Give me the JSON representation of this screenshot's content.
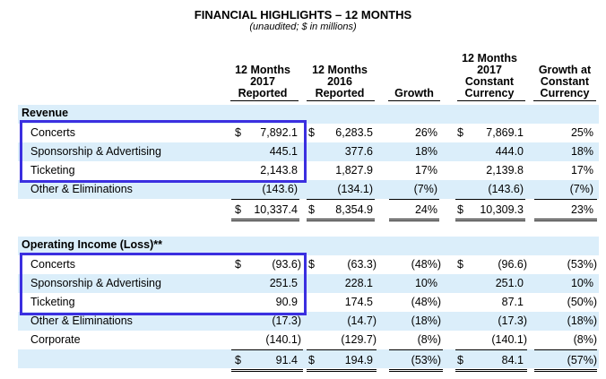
{
  "title": "FINANCIAL HIGHLIGHTS – 12 MONTHS",
  "subtitle": "(unaudited; $ in millions)",
  "headers": {
    "c1": [
      "12 Months",
      "2017",
      "Reported"
    ],
    "c2": [
      "12 Months",
      "2016",
      "Reported"
    ],
    "c3": [
      "Growth"
    ],
    "c4": [
      "12 Months",
      "2017",
      "Constant",
      "Currency"
    ],
    "c5": [
      "Growth at",
      "Constant",
      "Currency"
    ]
  },
  "currency_symbol": "$",
  "revenue": {
    "heading": "Revenue",
    "rows": [
      {
        "label": "Concerts",
        "c1": "7,892.1",
        "c2": "6,283.5",
        "c3": "26%",
        "c4": "7,869.1",
        "c5": "25%"
      },
      {
        "label": "Sponsorship & Advertising",
        "c1": "445.1",
        "c2": "377.6",
        "c3": "18%",
        "c4": "444.0",
        "c5": "18%"
      },
      {
        "label": "Ticketing",
        "c1": "2,143.8",
        "c2": "1,827.9",
        "c3": "17%",
        "c4": "2,139.8",
        "c5": "17%"
      },
      {
        "label": "Other & Eliminations",
        "c1": "(143.6)",
        "c2": "(134.1)",
        "c3": "(7%)",
        "c4": "(143.6)",
        "c5": "(7%)"
      }
    ],
    "total": {
      "c1": "10,337.4",
      "c2": "8,354.9",
      "c3": "24%",
      "c4": "10,309.3",
      "c5": "23%"
    }
  },
  "operating_income": {
    "heading": "Operating Income (Loss)**",
    "rows": [
      {
        "label": "Concerts",
        "c1": "(93.6)",
        "c2": "(63.3)",
        "c3": "(48%)",
        "c4": "(96.6)",
        "c5": "(53%)"
      },
      {
        "label": "Sponsorship & Advertising",
        "c1": "251.5",
        "c2": "228.1",
        "c3": "10%",
        "c4": "251.0",
        "c5": "10%"
      },
      {
        "label": "Ticketing",
        "c1": "90.9",
        "c2": "174.5",
        "c3": "(48%)",
        "c4": "87.1",
        "c5": "(50%)"
      },
      {
        "label": "Other & Eliminations",
        "c1": "(17.3)",
        "c2": "(14.7)",
        "c3": "(18%)",
        "c4": "(17.3)",
        "c5": "(18%)"
      },
      {
        "label": "Corporate",
        "c1": "(140.1)",
        "c2": "(129.7)",
        "c3": "(8%)",
        "c4": "(140.1)",
        "c5": "(8%)"
      }
    ],
    "total": {
      "c1": "91.4",
      "c2": "194.9",
      "c3": "(53%)",
      "c4": "84.1",
      "c5": "(57%)"
    }
  },
  "colors": {
    "band": "#dbeefa",
    "highlight_box": "#3b2fe0"
  }
}
